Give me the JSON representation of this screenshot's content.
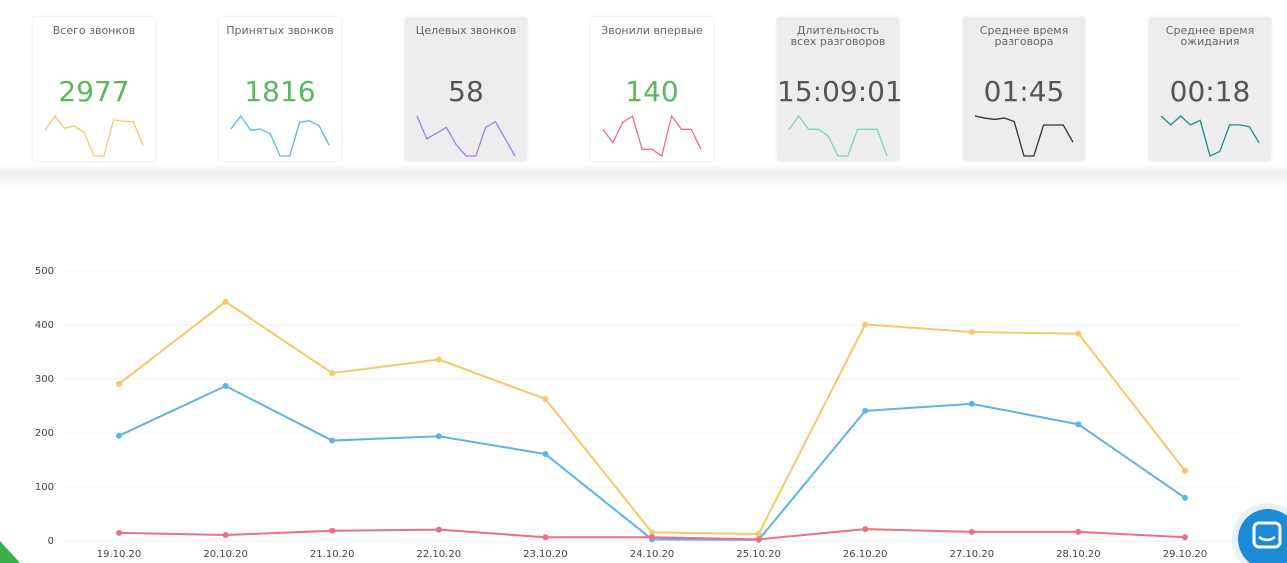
{
  "cards": [
    {
      "label": "Всего звонков",
      "value": "2977",
      "value_color": "#5cb85c",
      "background": "#ffffff",
      "spark_color": "#f5c96a",
      "spark": [
        291,
        443,
        311,
        336,
        263,
        16,
        13,
        401,
        387,
        384,
        130
      ]
    },
    {
      "label": "Принятых звонков",
      "value": "1816",
      "value_color": "#5cb85c",
      "background": "#ffffff",
      "spark_color": "#5bb5e8",
      "spark": [
        195,
        287,
        186,
        194,
        161,
        3,
        2,
        241,
        254,
        216,
        80
      ]
    },
    {
      "label": "Целевых звонков",
      "value": "58",
      "value_color": "#555555",
      "background": "#eeeded",
      "spark_color": "#a57ef5",
      "spark": [
        7,
        3,
        4,
        5,
        2,
        0,
        0,
        5,
        6,
        3,
        0
      ]
    },
    {
      "label": "Звонили впервые",
      "value": "140",
      "value_color": "#5cb85c",
      "background": "#ffffff",
      "spark_color": "#ee6e85",
      "spark": [
        4,
        2,
        5,
        6,
        1,
        1,
        0,
        6,
        4,
        4,
        1
      ]
    },
    {
      "label": "Длительность всех разговоров",
      "value": "15:09:01",
      "value_color": "#555555",
      "background": "#eeeded",
      "spark_color": "#7fd6c8",
      "spark": [
        4,
        6,
        4,
        4,
        3,
        0,
        0,
        4,
        4,
        4,
        0
      ]
    },
    {
      "label": "Среднее время разговора",
      "value": "01:45",
      "value_color": "#555555",
      "background": "#eeeded",
      "spark_color": "#333333",
      "spark": [
        5.8,
        5.5,
        5.3,
        5.5,
        5,
        0,
        0,
        4.5,
        4.5,
        4.5,
        2
      ]
    },
    {
      "label": "Среднее время ожидания",
      "value": "00:18",
      "value_color": "#555555",
      "background": "#eeeded",
      "spark_color": "#1a8a8f",
      "spark": [
        6,
        5,
        6,
        5,
        5.5,
        1.5,
        2,
        5,
        5,
        4.8,
        3
      ]
    }
  ],
  "chart_data": {
    "type": "line",
    "categories": [
      "19.10.20",
      "20.10.20",
      "21.10.20",
      "22.10.20",
      "23.10.20",
      "24.10.20",
      "25.10.20",
      "26.10.20",
      "27.10.20",
      "28.10.20",
      "29.10.20"
    ],
    "series": [
      {
        "color": "#f5c96a",
        "values": [
          291,
          443,
          311,
          336,
          263,
          16,
          13,
          401,
          387,
          384,
          130
        ]
      },
      {
        "color": "#5bb5e8",
        "values": [
          195,
          287,
          186,
          194,
          161,
          3,
          2,
          241,
          254,
          216,
          80
        ]
      },
      {
        "color": "#ee6e85",
        "values": [
          15,
          11,
          19,
          21,
          7,
          7,
          3,
          22,
          17,
          17,
          7
        ]
      }
    ],
    "ylim": [
      0,
      500
    ],
    "yticks": [
      0,
      100,
      200,
      300,
      400,
      500
    ],
    "grid": true
  }
}
